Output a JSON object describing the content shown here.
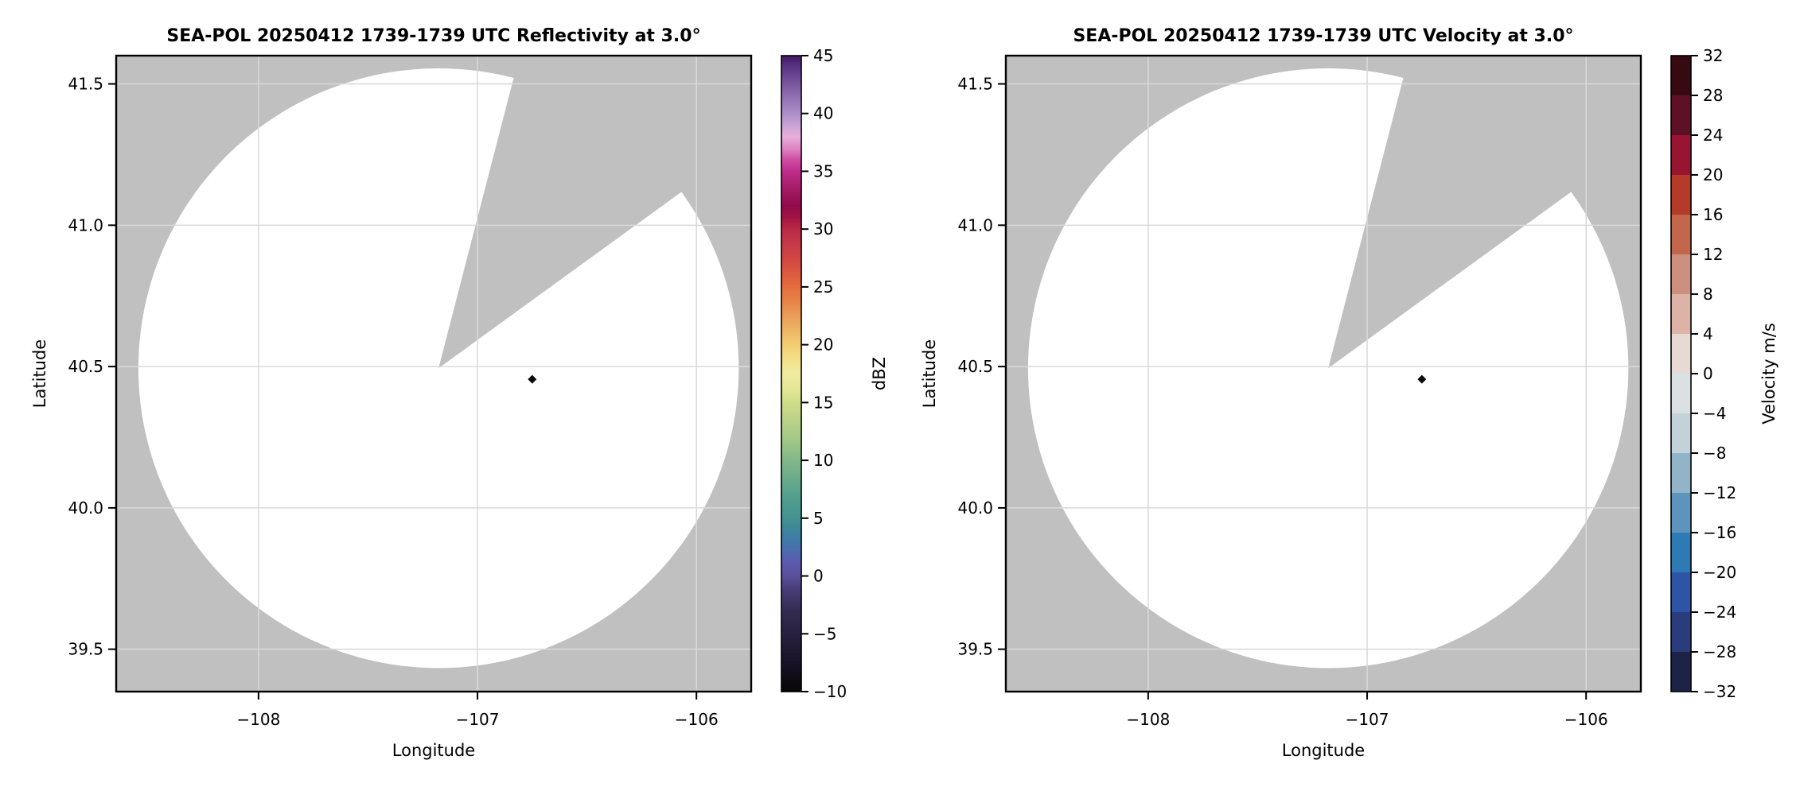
{
  "figure": {
    "background": "#ffffff",
    "masked_region_color": "#c0c0c0",
    "scan_area_color": "#ffffff",
    "gridline_color": "#d9d9d9",
    "frame_color": "#000000",
    "tick_color": "#000000",
    "marker_color": "#0a0a0a"
  },
  "chart_data": [
    {
      "type": "radar_ppi",
      "title": "SEA-POL 20250412 1739-1739 UTC Reflectivity at 3.0°",
      "xlabel": "Longitude",
      "ylabel": "Latitude",
      "xlim": [
        -108.65,
        -105.75
      ],
      "ylim": [
        39.35,
        41.6
      ],
      "grid": true,
      "xticks": [
        {
          "value": -108,
          "label": "−108"
        },
        {
          "value": -107,
          "label": "−107"
        },
        {
          "value": -106,
          "label": "−106"
        }
      ],
      "yticks": [
        {
          "value": 41.5,
          "label": "41.5"
        },
        {
          "value": 41.0,
          "label": "41.0"
        },
        {
          "value": 40.5,
          "label": "40.5"
        },
        {
          "value": 40.0,
          "label": "40.0"
        },
        {
          "value": 39.5,
          "label": "39.5"
        }
      ],
      "radar_center_lonlat": [
        -107.178,
        40.494
      ],
      "scan_radius_deg_lat": 1.061,
      "missing_sector_azimuth_deg": [
        14.5,
        54
      ],
      "site_marker_lonlat": [
        -106.75,
        40.455
      ],
      "echo_values": "none visible — entire scan coverage is blank (no reflectivity echoes plotted)",
      "colorbar": {
        "label": "dBZ",
        "style": "continuous",
        "vmin": -10,
        "vmax": 45,
        "ticks": [
          {
            "value": 45,
            "label": "45"
          },
          {
            "value": 40,
            "label": "40"
          },
          {
            "value": 35,
            "label": "35"
          },
          {
            "value": 30,
            "label": "30"
          },
          {
            "value": 25,
            "label": "25"
          },
          {
            "value": 20,
            "label": "20"
          },
          {
            "value": 15,
            "label": "15"
          },
          {
            "value": 10,
            "label": "10"
          },
          {
            "value": 5,
            "label": "5"
          },
          {
            "value": 0,
            "label": "0"
          },
          {
            "value": -5,
            "label": "−5"
          },
          {
            "value": -10,
            "label": "−10"
          }
        ],
        "gradient_stops": [
          {
            "value": -10,
            "color": "#060606"
          },
          {
            "value": -7.5,
            "color": "#181226"
          },
          {
            "value": -5,
            "color": "#282140"
          },
          {
            "value": -3,
            "color": "#342b52"
          },
          {
            "value": -1,
            "color": "#4a3f7d"
          },
          {
            "value": 0,
            "color": "#5a4f9b"
          },
          {
            "value": 1,
            "color": "#5d58ae"
          },
          {
            "value": 2,
            "color": "#5069b0"
          },
          {
            "value": 3,
            "color": "#4078a9"
          },
          {
            "value": 4,
            "color": "#3d869b"
          },
          {
            "value": 5,
            "color": "#449390"
          },
          {
            "value": 6,
            "color": "#4a9a8e"
          },
          {
            "value": 7,
            "color": "#55a08d"
          },
          {
            "value": 8,
            "color": "#63a88c"
          },
          {
            "value": 10,
            "color": "#82b889"
          },
          {
            "value": 12,
            "color": "#a5c987"
          },
          {
            "value": 14,
            "color": "#c2d688"
          },
          {
            "value": 15,
            "color": "#cfdd88"
          },
          {
            "value": 16,
            "color": "#e2e693"
          },
          {
            "value": 17.5,
            "color": "#f0eda0"
          },
          {
            "value": 19,
            "color": "#f4dd84"
          },
          {
            "value": 20,
            "color": "#f2cd72"
          },
          {
            "value": 22,
            "color": "#eca75d"
          },
          {
            "value": 24,
            "color": "#e77e45"
          },
          {
            "value": 25,
            "color": "#e56c3c"
          },
          {
            "value": 27,
            "color": "#d64c41"
          },
          {
            "value": 29,
            "color": "#c43549"
          },
          {
            "value": 30,
            "color": "#b92846"
          },
          {
            "value": 31,
            "color": "#a31342"
          },
          {
            "value": 32,
            "color": "#92094d"
          },
          {
            "value": 33.5,
            "color": "#a51c66"
          },
          {
            "value": 35,
            "color": "#c02c8c"
          },
          {
            "value": 36,
            "color": "#cf4da3"
          },
          {
            "value": 37,
            "color": "#de85c4"
          },
          {
            "value": 38,
            "color": "#e8aed9"
          },
          {
            "value": 39,
            "color": "#c9a2d5"
          },
          {
            "value": 40,
            "color": "#ab8fca"
          },
          {
            "value": 42,
            "color": "#8763a8"
          },
          {
            "value": 44,
            "color": "#5b3484"
          },
          {
            "value": 45,
            "color": "#431a66"
          }
        ]
      }
    },
    {
      "type": "radar_ppi",
      "title": "SEA-POL 20250412 1739-1739 UTC Velocity at 3.0°",
      "xlabel": "Longitude",
      "ylabel": "Latitude",
      "xlim": [
        -108.65,
        -105.75
      ],
      "ylim": [
        39.35,
        41.6
      ],
      "grid": true,
      "xticks": [
        {
          "value": -108,
          "label": "−108"
        },
        {
          "value": -107,
          "label": "−107"
        },
        {
          "value": -106,
          "label": "−106"
        }
      ],
      "yticks": [
        {
          "value": 41.5,
          "label": "41.5"
        },
        {
          "value": 41.0,
          "label": "41.0"
        },
        {
          "value": 40.5,
          "label": "40.5"
        },
        {
          "value": 40.0,
          "label": "40.0"
        },
        {
          "value": 39.5,
          "label": "39.5"
        }
      ],
      "radar_center_lonlat": [
        -107.178,
        40.494
      ],
      "scan_radius_deg_lat": 1.061,
      "missing_sector_azimuth_deg": [
        14.5,
        54
      ],
      "site_marker_lonlat": [
        -106.75,
        40.455
      ],
      "echo_values": "none visible — entire scan coverage is blank (no velocity echoes plotted)",
      "colorbar": {
        "label": "Velocity m/s",
        "style": "discrete",
        "vmin": -32,
        "vmax": 32,
        "ticks": [
          {
            "value": 32,
            "label": "32"
          },
          {
            "value": 28,
            "label": "28"
          },
          {
            "value": 24,
            "label": "24"
          },
          {
            "value": 20,
            "label": "20"
          },
          {
            "value": 16,
            "label": "16"
          },
          {
            "value": 12,
            "label": "12"
          },
          {
            "value": 8,
            "label": "8"
          },
          {
            "value": 4,
            "label": "4"
          },
          {
            "value": 0,
            "label": "0"
          },
          {
            "value": -4,
            "label": "−4"
          },
          {
            "value": -8,
            "label": "−8"
          },
          {
            "value": -12,
            "label": "−12"
          },
          {
            "value": -16,
            "label": "−16"
          },
          {
            "value": -20,
            "label": "−20"
          },
          {
            "value": -24,
            "label": "−24"
          },
          {
            "value": -28,
            "label": "−28"
          },
          {
            "value": -32,
            "label": "−32"
          }
        ],
        "segments": [
          {
            "from": 28,
            "to": 32,
            "color": "#370a12"
          },
          {
            "from": 24,
            "to": 28,
            "color": "#5e1126"
          },
          {
            "from": 20,
            "to": 24,
            "color": "#991430"
          },
          {
            "from": 16,
            "to": 20,
            "color": "#b43b28"
          },
          {
            "from": 12,
            "to": 16,
            "color": "#c3674c"
          },
          {
            "from": 8,
            "to": 12,
            "color": "#cd8f7e"
          },
          {
            "from": 4,
            "to": 8,
            "color": "#ddb3a8"
          },
          {
            "from": 0,
            "to": 4,
            "color": "#e7dad5"
          },
          {
            "from": -4,
            "to": 0,
            "color": "#dbe0e3"
          },
          {
            "from": -8,
            "to": -4,
            "color": "#c3d1d9"
          },
          {
            "from": -12,
            "to": -8,
            "color": "#92b4c8"
          },
          {
            "from": -16,
            "to": -12,
            "color": "#5d94bd"
          },
          {
            "from": -20,
            "to": -16,
            "color": "#2d7ab5"
          },
          {
            "from": -24,
            "to": -20,
            "color": "#2d54a5"
          },
          {
            "from": -28,
            "to": -24,
            "color": "#2b3c7d"
          },
          {
            "from": -32,
            "to": -28,
            "color": "#1d2346"
          }
        ]
      }
    }
  ]
}
